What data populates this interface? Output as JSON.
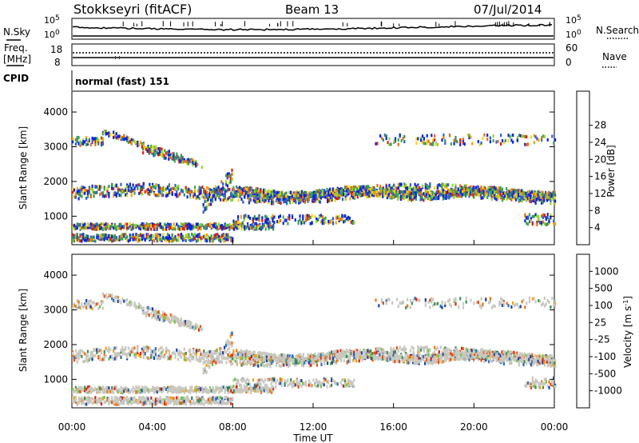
{
  "header": {
    "station": "Stokkseyri (fitACF)",
    "beam": "Beam 13",
    "date": "07/Jul/2014"
  },
  "sky_panel": {
    "left_label": "N.Sky",
    "right_label": "N.Search",
    "ytick_top": "10^5",
    "ytick_bottom": "10^0"
  },
  "freq_panel": {
    "left_label_line1": "Freq.",
    "left_label_line2": "[MHz]",
    "right_label": "Nave",
    "ytick_left_top": "18",
    "ytick_left_bottom": "8",
    "ytick_right_top": "60",
    "ytick_right_bottom": "0"
  },
  "cpid_panel": {
    "label": "CPID",
    "program": "normal (fast) 151"
  },
  "chart_data": [
    {
      "type": "heatmap",
      "title": "",
      "ylabel": "Slant Range [km]",
      "xlabel": "",
      "ylim": [
        180,
        4600
      ],
      "yticks": [
        "1000",
        "2000",
        "3000",
        "4000"
      ],
      "xlim_hours": [
        0,
        24
      ],
      "colorbar": {
        "label": "Power [dB]",
        "ticks": [
          "4",
          "8",
          "12",
          "16",
          "20",
          "24",
          "28"
        ],
        "colors": [
          "#0a24e0",
          "#2f5fc4",
          "#3d8b62",
          "#3ea84c",
          "#8fd832",
          "#ecd91a",
          "#f59f12",
          "#ef6a10",
          "#e31a0e"
        ]
      }
    },
    {
      "type": "heatmap",
      "title": "",
      "ylabel": "Slant Range [km]",
      "xlabel": "Time UT",
      "ylim": [
        180,
        4600
      ],
      "yticks": [
        "1000",
        "2000",
        "3000",
        "4000"
      ],
      "xlim_hours": [
        0,
        24
      ],
      "xticks": [
        "00:00",
        "04:00",
        "08:00",
        "12:00",
        "16:00",
        "20:00",
        "00:00"
      ],
      "colorbar": {
        "label": "Velocity [m s-1]",
        "ticks": [
          "1000",
          "500",
          "100",
          "25",
          "-25",
          "-100",
          "-500",
          "-1000"
        ],
        "colors": [
          "#1b3fa6",
          "#2f6fb8",
          "#3c8f52",
          "#6cc540",
          "#c8c8c0",
          "#f1a018",
          "#ef7414",
          "#e84b10",
          "#e01a0c"
        ]
      }
    }
  ]
}
